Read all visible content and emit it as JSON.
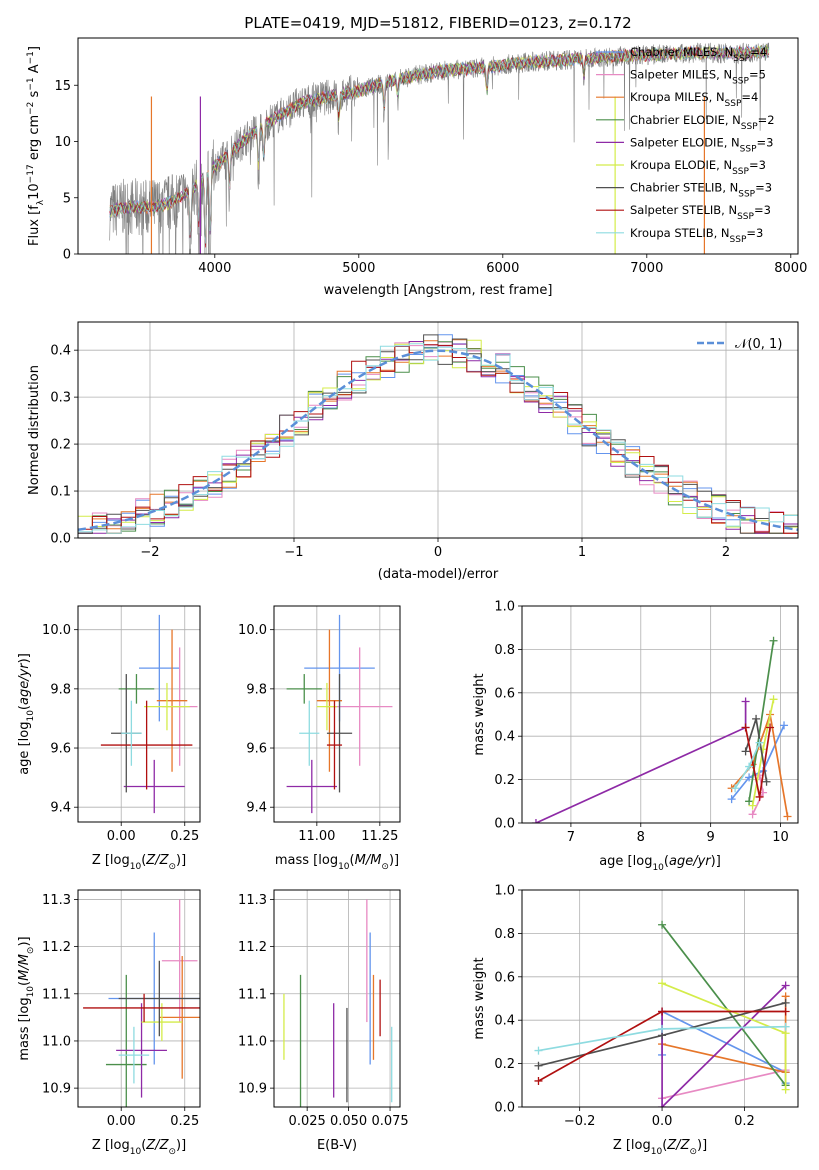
{
  "figure_title": "PLATE=0419, MJD=51812, FIBERID=0123, z=0.172",
  "colors": {
    "chabrier_miles": "#6495ed",
    "salpeter_miles": "#e78ac3",
    "kroupa_miles": "#e6762a",
    "chabrier_elodie": "#4b8f4b",
    "salpeter_elodie": "#8e2aa6",
    "kroupa_elodie": "#d4ec4a",
    "chabrier_stelib": "#505050",
    "salpeter_stelib": "#b01010",
    "kroupa_stelib": "#8edbe0",
    "data": "#808080",
    "gaussian": "#5b8fd8"
  },
  "legend_labels": {
    "chabrier_miles": "Chabrier MILES, N",
    "salpeter_miles": "Salpeter MILES, N",
    "kroupa_miles": "Kroupa MILES, N",
    "chabrier_elodie": "Chabrier ELODIE, N",
    "salpeter_elodie": "Salpeter ELODIE, N",
    "kroupa_elodie": "Kroupa ELODIE, N",
    "chabrier_stelib": "Chabrier STELIB, N",
    "salpeter_stelib": "Salpeter STELIB, N",
    "kroupa_stelib": "Kroupa STELIB, N",
    "ssp_sub": "SSP",
    "nssp": {
      "chabrier_miles": "=4",
      "salpeter_miles": "=5",
      "kroupa_miles": "=4",
      "chabrier_elodie": "=2",
      "salpeter_elodie": "=3",
      "kroupa_elodie": "=3",
      "chabrier_stelib": "=3",
      "salpeter_stelib": "=3",
      "kroupa_stelib": "=3"
    }
  },
  "chart_data": [
    {
      "id": "spectrum",
      "type": "line",
      "xlabel": "wavelength [Angstrom, rest frame]",
      "ylabel": "Flux [f",
      "ylabel_parts": [
        "Flux [f",
        "λ",
        "10",
        "−17",
        " erg cm",
        "−2",
        " s",
        "−1",
        " A",
        "−1",
        "]"
      ],
      "xlim": [
        3050,
        8050
      ],
      "ylim": [
        0,
        19.2
      ],
      "xticks": [
        "4000",
        "5000",
        "6000",
        "7000",
        "8000"
      ],
      "yticks": [
        "0",
        "5",
        "10",
        "15"
      ],
      "continuum_x": [
        3270,
        3400,
        3550,
        3700,
        3850,
        4000,
        4150,
        4300,
        4450,
        4600,
        4800,
        5000,
        5200,
        5400,
        5600,
        5800,
        6000,
        6200,
        6400,
        6600,
        6800,
        7000,
        7200,
        7400,
        7600,
        7800
      ],
      "continuum_y": [
        3.8,
        4.2,
        4.1,
        4.6,
        5.8,
        7.8,
        9.5,
        11.2,
        12.3,
        13.4,
        14.0,
        14.5,
        15.3,
        15.9,
        16.3,
        16.5,
        16.8,
        17.1,
        17.2,
        17.4,
        17.6,
        17.7,
        17.8,
        17.9,
        17.8,
        18.0
      ]
    },
    {
      "id": "residual_histogram",
      "type": "histogram",
      "xlabel": "(data-model)/error",
      "ylabel": "Normed distribution",
      "xlim": [
        -2.5,
        2.5
      ],
      "ylim": [
        0,
        0.46
      ],
      "xticks": [
        "−2",
        "−1",
        "0",
        "1",
        "2"
      ],
      "yticks": [
        "0.0",
        "0.1",
        "0.2",
        "0.3",
        "0.4"
      ],
      "legend": "𝒩(0, 1)"
    },
    {
      "id": "age_vs_Z",
      "type": "scatter",
      "xlabel": "Z [log",
      "ylabel": "age  [log",
      "xlim": [
        -0.17,
        0.31
      ],
      "ylim": [
        9.35,
        10.08
      ],
      "xticks": [
        "0.00",
        "0.25"
      ],
      "yticks": [
        "9.4",
        "9.6",
        "9.8",
        "10.0"
      ],
      "points": [
        {
          "model": "chabrier_miles",
          "x": 0.15,
          "y": 9.87,
          "xerr": 0.08,
          "yerr": 0.18
        },
        {
          "model": "salpeter_miles",
          "x": 0.23,
          "y": 9.74,
          "xerr": 0.07,
          "yerr": 0.2
        },
        {
          "model": "kroupa_miles",
          "x": 0.2,
          "y": 9.76,
          "xerr": 0.06,
          "yerr": 0.24
        },
        {
          "model": "chabrier_elodie",
          "x": 0.06,
          "y": 9.8,
          "xerr": 0.07,
          "yerr": 0.05
        },
        {
          "model": "salpeter_elodie",
          "x": 0.13,
          "y": 9.47,
          "xerr": 0.12,
          "yerr": 0.09
        },
        {
          "model": "kroupa_elodie",
          "x": 0.18,
          "y": 9.74,
          "xerr": 0.09,
          "yerr": 0.08
        },
        {
          "model": "chabrier_stelib",
          "x": 0.02,
          "y": 9.65,
          "xerr": 0.06,
          "yerr": 0.2
        },
        {
          "model": "salpeter_stelib",
          "x": 0.1,
          "y": 9.61,
          "xerr": 0.18,
          "yerr": 0.15
        },
        {
          "model": "kroupa_stelib",
          "x": 0.04,
          "y": 9.65,
          "xerr": 0.04,
          "yerr": 0.11
        }
      ]
    },
    {
      "id": "age_vs_mass",
      "type": "scatter",
      "xlabel": "mass [log",
      "ylabel": "",
      "xlim": [
        10.83,
        11.33
      ],
      "ylim": [
        9.35,
        10.08
      ],
      "xticks": [
        "11.00",
        "11.25"
      ],
      "yticks": [
        "9.4",
        "9.6",
        "9.8",
        "10.0"
      ],
      "points": [
        {
          "model": "chabrier_miles",
          "x": 11.09,
          "y": 9.87,
          "xerr": 0.14,
          "yerr": 0.18
        },
        {
          "model": "salpeter_miles",
          "x": 11.17,
          "y": 9.74,
          "xerr": 0.13,
          "yerr": 0.2
        },
        {
          "model": "kroupa_miles",
          "x": 11.05,
          "y": 9.76,
          "xerr": 0.05,
          "yerr": 0.24
        },
        {
          "model": "chabrier_elodie",
          "x": 10.95,
          "y": 9.8,
          "xerr": 0.07,
          "yerr": 0.05
        },
        {
          "model": "salpeter_elodie",
          "x": 10.98,
          "y": 9.47,
          "xerr": 0.1,
          "yerr": 0.09
        },
        {
          "model": "kroupa_elodie",
          "x": 11.04,
          "y": 9.74,
          "xerr": 0.04,
          "yerr": 0.08
        },
        {
          "model": "chabrier_stelib",
          "x": 11.09,
          "y": 9.65,
          "xerr": 0.05,
          "yerr": 0.2
        },
        {
          "model": "salpeter_stelib",
          "x": 11.07,
          "y": 9.61,
          "xerr": 0.03,
          "yerr": 0.15
        },
        {
          "model": "kroupa_stelib",
          "x": 10.97,
          "y": 9.65,
          "xerr": 0.04,
          "yerr": 0.11
        }
      ]
    },
    {
      "id": "mass_weight_vs_age",
      "type": "line",
      "xlabel": "age  [log",
      "ylabel": "mass weight",
      "xlim": [
        6.3,
        10.25
      ],
      "ylim": [
        0,
        1
      ],
      "xticks": [
        "7",
        "8",
        "9",
        "10"
      ],
      "yticks": [
        "0.0",
        "0.2",
        "0.4",
        "0.6",
        "0.8",
        "1.0"
      ],
      "series": [
        {
          "model": "chabrier_miles",
          "x": [
            9.3,
            9.55,
            9.75,
            10.05
          ],
          "y": [
            0.11,
            0.21,
            0.24,
            0.45
          ]
        },
        {
          "model": "salpeter_miles",
          "x": [
            9.6,
            9.75,
            9.7
          ],
          "y": [
            0.04,
            0.14,
            0.22
          ]
        },
        {
          "model": "kroupa_miles",
          "x": [
            9.3,
            9.6,
            9.85,
            10.1
          ],
          "y": [
            0.16,
            0.27,
            0.5,
            0.03
          ]
        },
        {
          "model": "chabrier_elodie",
          "x": [
            9.55,
            9.9
          ],
          "y": [
            0.1,
            0.84
          ]
        },
        {
          "model": "salpeter_elodie",
          "x": [
            6.5,
            9.5,
            9.5
          ],
          "y": [
            0.0,
            0.44,
            0.56
          ]
        },
        {
          "model": "kroupa_elodie",
          "x": [
            9.6,
            9.75,
            9.9
          ],
          "y": [
            0.08,
            0.34,
            0.57
          ]
        },
        {
          "model": "chabrier_stelib",
          "x": [
            9.5,
            9.65,
            9.8
          ],
          "y": [
            0.33,
            0.48,
            0.19
          ]
        },
        {
          "model": "salpeter_stelib",
          "x": [
            9.5,
            9.7,
            9.85
          ],
          "y": [
            0.44,
            0.12,
            0.44
          ]
        },
        {
          "model": "kroupa_stelib",
          "x": [
            9.35,
            9.55,
            9.7
          ],
          "y": [
            0.16,
            0.26,
            0.37
          ]
        }
      ]
    },
    {
      "id": "mass_vs_Z",
      "type": "scatter",
      "xlabel": "Z [log",
      "ylabel": "mass [log",
      "xlim": [
        -0.17,
        0.31
      ],
      "ylim": [
        10.86,
        11.32
      ],
      "xticks": [
        "0.00",
        "0.25"
      ],
      "yticks": [
        "10.9",
        "11.0",
        "11.1",
        "11.2",
        "11.3"
      ],
      "points": [
        {
          "model": "chabrier_miles",
          "x": 0.13,
          "y": 11.09,
          "xerr": 0.18,
          "yerr": 0.14
        },
        {
          "model": "salpeter_miles",
          "x": 0.23,
          "y": 11.17,
          "xerr": 0.07,
          "yerr": 0.13
        },
        {
          "model": "kroupa_miles",
          "x": 0.24,
          "y": 11.05,
          "xerr": 0.09,
          "yerr": 0.13
        },
        {
          "model": "chabrier_elodie",
          "x": 0.02,
          "y": 10.95,
          "xerr": 0.08,
          "yerr": 0.19
        },
        {
          "model": "salpeter_elodie",
          "x": 0.08,
          "y": 10.98,
          "xerr": 0.1,
          "yerr": 0.1
        },
        {
          "model": "kroupa_elodie",
          "x": 0.16,
          "y": 11.04,
          "xerr": 0.08,
          "yerr": 0.04
        },
        {
          "model": "chabrier_stelib",
          "x": 0.15,
          "y": 11.09,
          "xerr": 0.16,
          "yerr": 0.08
        },
        {
          "model": "salpeter_stelib",
          "x": 0.09,
          "y": 11.07,
          "xerr": 0.24,
          "yerr": 0.03
        },
        {
          "model": "kroupa_stelib",
          "x": 0.05,
          "y": 10.97,
          "xerr": 0.06,
          "yerr": 0.06
        }
      ]
    },
    {
      "id": "mass_vs_ebv",
      "type": "scatter",
      "xlabel": "E(B-V)",
      "ylabel": "",
      "xlim": [
        0.005,
        0.081
      ],
      "ylim": [
        10.86,
        11.32
      ],
      "xticks": [
        "0.025",
        "0.050",
        "0.075"
      ],
      "yticks": [
        "10.9",
        "11.0",
        "11.1",
        "11.2",
        "11.3"
      ],
      "points": [
        {
          "model": "kroupa_elodie",
          "x": 0.011,
          "y": 11.03,
          "yerr": 0.07
        },
        {
          "model": "chabrier_elodie",
          "x": 0.021,
          "y": 11.0,
          "yerr": 0.14
        },
        {
          "model": "salpeter_elodie",
          "x": 0.041,
          "y": 10.98,
          "yerr": 0.1
        },
        {
          "model": "chabrier_stelib",
          "x": 0.049,
          "y": 10.97,
          "yerr": 0.1
        },
        {
          "model": "salpeter_miles",
          "x": 0.061,
          "y": 11.17,
          "yerr": 0.13
        },
        {
          "model": "chabrier_miles",
          "x": 0.063,
          "y": 11.09,
          "yerr": 0.14
        },
        {
          "model": "kroupa_miles",
          "x": 0.065,
          "y": 11.05,
          "yerr": 0.09
        },
        {
          "model": "salpeter_stelib",
          "x": 0.069,
          "y": 11.07,
          "yerr": 0.06
        },
        {
          "model": "kroupa_stelib",
          "x": 0.076,
          "y": 10.95,
          "yerr": 0.08
        }
      ]
    },
    {
      "id": "mass_weight_vs_Z",
      "type": "line",
      "xlabel": "Z [log",
      "ylabel": "mass weight",
      "xlim": [
        -0.34,
        0.33
      ],
      "ylim": [
        0,
        1
      ],
      "xticks": [
        "−0.2",
        "0.0",
        "0.2"
      ],
      "yticks": [
        "0.0",
        "0.2",
        "0.4",
        "0.6",
        "0.8",
        "1.0"
      ],
      "series": [
        {
          "model": "chabrier_miles",
          "x": [
            0.0,
            0.0,
            0.3,
            0.3
          ],
          "y": [
            0.24,
            0.44,
            0.16,
            0.11
          ]
        },
        {
          "model": "salpeter_miles",
          "x": [
            0.0,
            0.3
          ],
          "y": [
            0.04,
            0.17
          ]
        },
        {
          "model": "kroupa_miles",
          "x": [
            0.0,
            0.3,
            0.3
          ],
          "y": [
            0.29,
            0.16,
            0.51
          ]
        },
        {
          "model": "chabrier_elodie",
          "x": [
            0.0,
            0.3
          ],
          "y": [
            0.84,
            0.1
          ]
        },
        {
          "model": "salpeter_elodie",
          "x": [
            0.0,
            0.0,
            0.3
          ],
          "y": [
            0.44,
            0.0,
            0.56
          ]
        },
        {
          "model": "kroupa_elodie",
          "x": [
            0.0,
            0.3,
            0.3
          ],
          "y": [
            0.57,
            0.34,
            0.08
          ]
        },
        {
          "model": "chabrier_stelib",
          "x": [
            -0.3,
            0.0,
            0.3
          ],
          "y": [
            0.19,
            0.33,
            0.48
          ]
        },
        {
          "model": "salpeter_stelib",
          "x": [
            -0.3,
            0.0,
            0.3
          ],
          "y": [
            0.12,
            0.44,
            0.44
          ]
        },
        {
          "model": "kroupa_stelib",
          "x": [
            -0.3,
            0.0,
            0.3
          ],
          "y": [
            0.26,
            0.36,
            0.37
          ]
        }
      ]
    }
  ]
}
